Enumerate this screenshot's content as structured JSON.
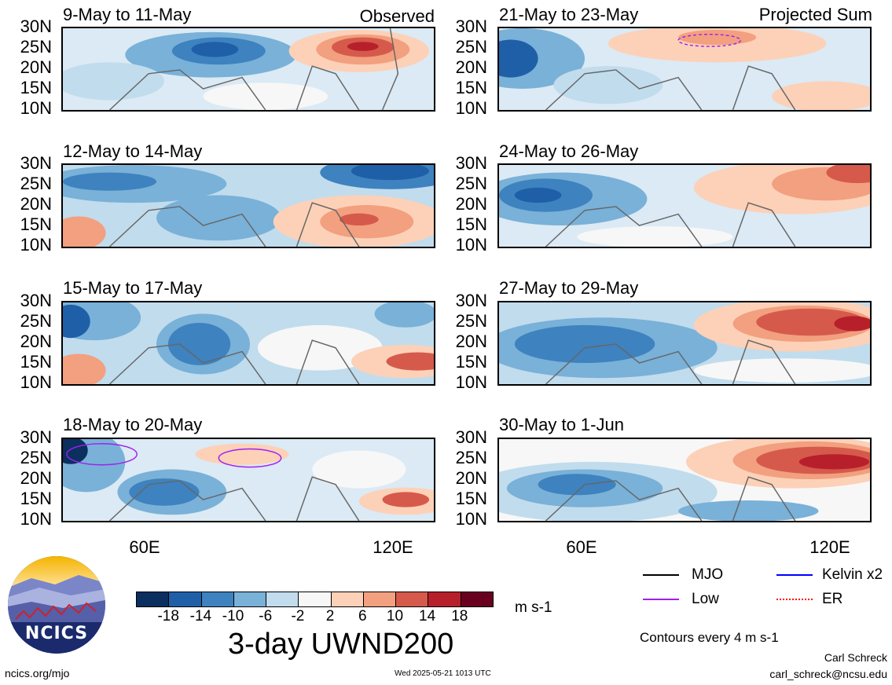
{
  "panels": [
    {
      "title": "9-May to 11-May",
      "corner": "Observed"
    },
    {
      "title": "12-May to 14-May",
      "corner": ""
    },
    {
      "title": "15-May to 17-May",
      "corner": ""
    },
    {
      "title": "18-May to 20-May",
      "corner": ""
    },
    {
      "title": "21-May to 23-May",
      "corner": "Projected Sum"
    },
    {
      "title": "24-May to 26-May",
      "corner": ""
    },
    {
      "title": "27-May to 29-May",
      "corner": ""
    },
    {
      "title": "30-May to 1-Jun",
      "corner": ""
    }
  ],
  "axes": {
    "y_ticks": [
      "30N",
      "25N",
      "20N",
      "15N",
      "10N"
    ],
    "x_ticks": [
      "60E",
      "120E"
    ]
  },
  "colorbar": {
    "labels": [
      "-18",
      "-14",
      "-10",
      "-6",
      "-2",
      "2",
      "6",
      "10",
      "14",
      "18"
    ],
    "colors": [
      "#0b2f5e",
      "#1f5fa8",
      "#3e82bf",
      "#79b1d8",
      "#c1dced",
      "#f7f7f7",
      "#fcd1b8",
      "#f2a07f",
      "#d65a4b",
      "#b7202b",
      "#6a0020"
    ],
    "units": "m s-1"
  },
  "main_title": "3-day UWND200",
  "legend": [
    {
      "label": "MJO",
      "color": "#000000",
      "style": "solid"
    },
    {
      "label": "Kelvin x2",
      "color": "#0000ff",
      "style": "solid"
    },
    {
      "label": "Low",
      "color": "#a020f0",
      "style": "solid"
    },
    {
      "label": "ER",
      "color": "#ff0000",
      "style": "dotted"
    }
  ],
  "contours_note": "Contours every 4 m s-1",
  "author": "Carl Schreck",
  "email": "carl_schreck@ncsu.edu",
  "website": "ncics.org/mjo",
  "timestamp": "Wed 2025-05-21 1013 UTC",
  "logo_text": "NCICS"
}
